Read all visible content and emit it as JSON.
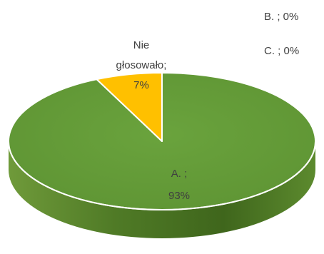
{
  "chart_data": {
    "type": "pie",
    "style": "3d",
    "legend": "none",
    "slices": [
      {
        "category": "A. ",
        "value": 93,
        "label_line1": "A.  ;",
        "label_line2": "93%",
        "color": "#70AD47"
      },
      {
        "category": "Nie głosowało",
        "value": 7,
        "label_line1": "Nie",
        "label_line2": "głosowało;",
        "label_line3": "7%",
        "color": "#FFC000"
      },
      {
        "category": "B. ",
        "value": 0,
        "label_line1": "B.  ; 0%",
        "color": "#5B9BD5"
      },
      {
        "category": "C. ",
        "value": 0,
        "label_line1": "C.   ; 0%",
        "color": "#A5A5A5"
      }
    ],
    "label_color": "#404040"
  }
}
